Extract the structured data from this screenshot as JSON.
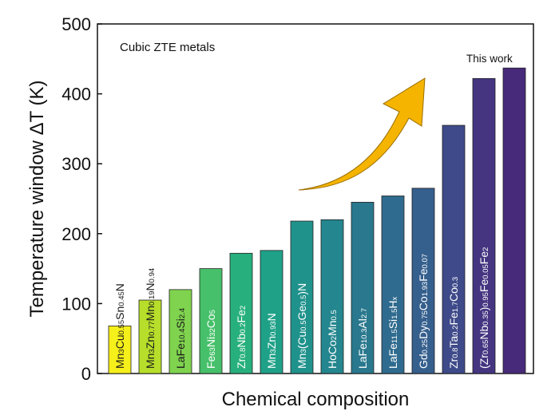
{
  "chart_data": {
    "type": "bar",
    "title": "",
    "annotation": "Cubic ZTE metals",
    "highlight_label": "This work",
    "xlabel": "Chemical composition",
    "ylabel": "Temperature window ΔT (K)",
    "ylim": [
      0,
      500
    ],
    "yticks": [
      0,
      100,
      200,
      300,
      400,
      500
    ],
    "grid": false,
    "legend": "none",
    "categories": [
      [
        [
          "Mn",
          false
        ],
        [
          "3",
          true
        ],
        [
          "Cu",
          false
        ],
        [
          "0.55",
          true
        ],
        [
          "Sn",
          false
        ],
        [
          "0.45",
          true
        ],
        [
          "N",
          false
        ]
      ],
      [
        [
          "Mn",
          false
        ],
        [
          "3",
          true
        ],
        [
          "Zn",
          false
        ],
        [
          "0.77",
          true
        ],
        [
          "Mn",
          false
        ],
        [
          "0.19",
          true
        ],
        [
          "N",
          false
        ],
        [
          "0.94",
          true
        ]
      ],
      [
        [
          "LaFe",
          false
        ],
        [
          "10.4",
          true
        ],
        [
          "Si",
          false
        ],
        [
          "2.4",
          true
        ]
      ],
      [
        [
          "Fe",
          false
        ],
        [
          "63",
          true
        ],
        [
          "Ni",
          false
        ],
        [
          "32",
          true
        ],
        [
          "Co",
          false
        ],
        [
          "5",
          true
        ]
      ],
      [
        [
          "Zr",
          false
        ],
        [
          "0.8",
          true
        ],
        [
          "Nb",
          false
        ],
        [
          "0.2",
          true
        ],
        [
          "Fe",
          false
        ],
        [
          "2",
          true
        ]
      ],
      [
        [
          "Mn",
          false
        ],
        [
          "3",
          true
        ],
        [
          "Zn",
          false
        ],
        [
          "0.93",
          true
        ],
        [
          "N",
          false
        ]
      ],
      [
        [
          "Mn",
          false
        ],
        [
          "3",
          true
        ],
        [
          "(Cu",
          false
        ],
        [
          "0.5",
          true
        ],
        [
          "Ge",
          false
        ],
        [
          "0.5",
          true
        ],
        [
          ")N",
          false
        ]
      ],
      [
        [
          "HoCo",
          false
        ],
        [
          "2",
          true
        ],
        [
          "Mn",
          false
        ],
        [
          "0.5",
          true
        ]
      ],
      [
        [
          "LaFe",
          false
        ],
        [
          "10.3",
          true
        ],
        [
          "Al",
          false
        ],
        [
          "2.7",
          true
        ]
      ],
      [
        [
          "LaFe",
          false
        ],
        [
          "11.5",
          true
        ],
        [
          "Si",
          false
        ],
        [
          "1.5",
          true
        ],
        [
          "H",
          false
        ],
        [
          "x",
          true
        ]
      ],
      [
        [
          "Gd",
          false
        ],
        [
          "0.25",
          true
        ],
        [
          "Dy",
          false
        ],
        [
          "0.75",
          true
        ],
        [
          "Co",
          false
        ],
        [
          "1.93",
          true
        ],
        [
          "Fe",
          false
        ],
        [
          "0.07",
          true
        ]
      ],
      [
        [
          "Zr",
          false
        ],
        [
          "0.8",
          true
        ],
        [
          "Ta",
          false
        ],
        [
          "0.2",
          true
        ],
        [
          "Fe",
          false
        ],
        [
          "1.7",
          true
        ],
        [
          "Co",
          false
        ],
        [
          "0.3",
          true
        ]
      ],
      [
        [
          "(Zr",
          false
        ],
        [
          "0.65",
          true
        ],
        [
          "Nb",
          false
        ],
        [
          "0.35",
          true
        ],
        [
          ")",
          false
        ],
        [
          "0.95",
          true
        ],
        [
          "Fe",
          false
        ],
        [
          "0.05",
          true
        ],
        [
          "Fe",
          false
        ],
        [
          "2",
          true
        ]
      ],
      []
    ],
    "values": [
      68,
      105,
      120,
      150,
      172,
      176,
      218,
      220,
      245,
      254,
      265,
      355,
      422,
      437
    ],
    "colors": [
      "#f5ef1a",
      "#b7de2a",
      "#7fd34e",
      "#46c06a",
      "#27b07d",
      "#1fa188",
      "#20928c",
      "#24868e",
      "#29788e",
      "#2f6b8e",
      "#355f8d",
      "#3e4a89",
      "#453581",
      "#472a7a"
    ],
    "arrow_color": "#f5b400"
  }
}
